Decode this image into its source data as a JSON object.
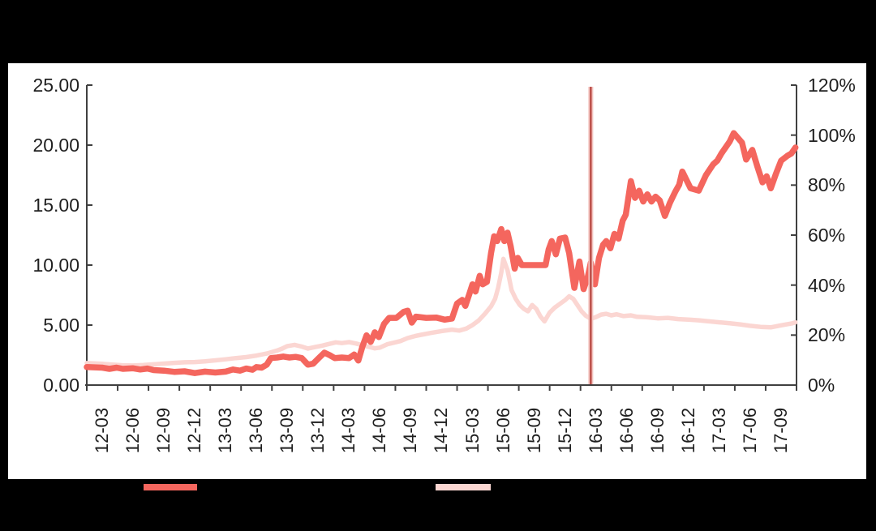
{
  "chart_data": {
    "type": "line",
    "title": "",
    "x_axis": {
      "labels": [
        "12-03",
        "12-06",
        "12-09",
        "12-12",
        "13-03",
        "13-06",
        "13-09",
        "13-12",
        "14-03",
        "14-06",
        "14-09",
        "14-12",
        "15-03",
        "15-06",
        "15-09",
        "15-12",
        "16-03",
        "16-06",
        "16-09",
        "16-12",
        "17-03",
        "17-06",
        "17-09"
      ],
      "rotated": true
    },
    "left_axis": {
      "labels": [
        "25.00",
        "20.00",
        "15.00",
        "10.00",
        "5.00",
        "0.00"
      ],
      "min": 0,
      "max": 25
    },
    "right_axis": {
      "labels": [
        "120%",
        "100%",
        "80%",
        "60%",
        "40%",
        "20%",
        "0%"
      ],
      "min": 0,
      "max": 120
    },
    "grid": false,
    "legend_position": "bottom",
    "marker_line": {
      "t_months_from_2012_03": 47.5,
      "color": "#b5423c"
    },
    "series": [
      {
        "name": "light-pink-series",
        "axis": "right",
        "color": "#fbd6d2",
        "points": [
          [
            -1.5,
            8.8
          ],
          [
            0,
            8.5
          ],
          [
            1,
            8.2
          ],
          [
            2,
            7.9
          ],
          [
            3,
            7.8
          ],
          [
            4,
            8.0
          ],
          [
            5,
            8.3
          ],
          [
            6,
            8.6
          ],
          [
            7,
            8.9
          ],
          [
            8,
            9.1
          ],
          [
            9,
            9.2
          ],
          [
            10,
            9.5
          ],
          [
            11,
            9.9
          ],
          [
            12,
            10.3
          ],
          [
            13,
            10.8
          ],
          [
            14,
            11.2
          ],
          [
            15,
            11.8
          ],
          [
            16,
            12.6
          ],
          [
            17,
            13.8
          ],
          [
            17.5,
            14.6
          ],
          [
            18,
            15.6
          ],
          [
            18.7,
            16.1
          ],
          [
            19.4,
            15.4
          ],
          [
            20,
            14.6
          ],
          [
            20.7,
            15.2
          ],
          [
            21.4,
            15.8
          ],
          [
            22,
            16.4
          ],
          [
            22.7,
            17.1
          ],
          [
            23.3,
            16.8
          ],
          [
            24,
            17.2
          ],
          [
            24.7,
            16.6
          ],
          [
            25.4,
            15.8
          ],
          [
            26,
            15.2
          ],
          [
            26.5,
            14.7
          ],
          [
            27,
            15.0
          ],
          [
            27.7,
            16.3
          ],
          [
            28.4,
            17.0
          ],
          [
            29,
            17.6
          ],
          [
            29.7,
            18.8
          ],
          [
            30.4,
            19.6
          ],
          [
            31,
            20.1
          ],
          [
            32,
            20.9
          ],
          [
            33,
            21.6
          ],
          [
            34,
            22.2
          ],
          [
            34.7,
            21.8
          ],
          [
            35.4,
            22.6
          ],
          [
            36,
            24.0
          ],
          [
            36.6,
            25.8
          ],
          [
            37.2,
            28.5
          ],
          [
            37.8,
            31.5
          ],
          [
            38.2,
            34.5
          ],
          [
            38.5,
            39.0
          ],
          [
            38.8,
            45.0
          ],
          [
            39,
            50.5
          ],
          [
            39.4,
            46.0
          ],
          [
            39.8,
            38.0
          ],
          [
            40.2,
            34.5
          ],
          [
            40.6,
            32.0
          ],
          [
            41,
            30.5
          ],
          [
            41.4,
            29.5
          ],
          [
            41.8,
            32.0
          ],
          [
            42.2,
            30.5
          ],
          [
            42.6,
            27.5
          ],
          [
            43,
            25.5
          ],
          [
            43.5,
            29.0
          ],
          [
            44,
            31.0
          ],
          [
            44.5,
            32.5
          ],
          [
            45,
            34.0
          ],
          [
            45.4,
            35.5
          ],
          [
            45.8,
            34.5
          ],
          [
            46.2,
            32.0
          ],
          [
            46.6,
            29.5
          ],
          [
            47,
            27.8
          ],
          [
            47.5,
            26.5
          ],
          [
            48,
            27.2
          ],
          [
            48.5,
            28.2
          ],
          [
            49,
            28.5
          ],
          [
            49.5,
            27.9
          ],
          [
            50,
            28.3
          ],
          [
            50.7,
            27.6
          ],
          [
            51.4,
            27.9
          ],
          [
            52,
            27.3
          ],
          [
            53,
            27.1
          ],
          [
            54,
            26.7
          ],
          [
            55,
            26.9
          ],
          [
            56,
            26.4
          ],
          [
            57,
            26.2
          ],
          [
            58,
            25.9
          ],
          [
            59,
            25.5
          ],
          [
            60,
            25.1
          ],
          [
            61,
            24.7
          ],
          [
            62,
            24.3
          ],
          [
            63,
            23.7
          ],
          [
            64,
            23.3
          ],
          [
            65,
            23.1
          ],
          [
            66,
            23.9
          ],
          [
            67,
            24.6
          ],
          [
            67.4,
            25.1
          ]
        ]
      },
      {
        "name": "solid-coral-series",
        "axis": "left",
        "color": "#f4665e",
        "points": [
          [
            -1.5,
            1.5
          ],
          [
            0,
            1.45
          ],
          [
            0.7,
            1.35
          ],
          [
            1.4,
            1.45
          ],
          [
            2,
            1.35
          ],
          [
            3,
            1.4
          ],
          [
            3.7,
            1.3
          ],
          [
            4.4,
            1.38
          ],
          [
            5,
            1.25
          ],
          [
            6,
            1.2
          ],
          [
            7,
            1.1
          ],
          [
            8,
            1.15
          ],
          [
            9,
            1.0
          ],
          [
            10,
            1.12
          ],
          [
            11,
            1.05
          ],
          [
            12,
            1.12
          ],
          [
            12.7,
            1.3
          ],
          [
            13.4,
            1.2
          ],
          [
            14,
            1.38
          ],
          [
            14.6,
            1.28
          ],
          [
            15,
            1.5
          ],
          [
            15.5,
            1.45
          ],
          [
            16,
            1.7
          ],
          [
            16.4,
            2.25
          ],
          [
            17,
            2.3
          ],
          [
            17.6,
            2.38
          ],
          [
            18.2,
            2.3
          ],
          [
            18.8,
            2.35
          ],
          [
            19.4,
            2.25
          ],
          [
            20,
            1.7
          ],
          [
            20.5,
            1.78
          ],
          [
            21,
            2.2
          ],
          [
            21.6,
            2.7
          ],
          [
            22.1,
            2.5
          ],
          [
            22.6,
            2.25
          ],
          [
            23.3,
            2.3
          ],
          [
            24,
            2.25
          ],
          [
            24.5,
            2.55
          ],
          [
            24.9,
            2.05
          ],
          [
            25.3,
            3.2
          ],
          [
            25.7,
            4.15
          ],
          [
            26.1,
            3.6
          ],
          [
            26.5,
            4.4
          ],
          [
            26.9,
            4.0
          ],
          [
            27.4,
            5.1
          ],
          [
            27.9,
            5.6
          ],
          [
            28.6,
            5.6
          ],
          [
            29.3,
            6.1
          ],
          [
            29.7,
            6.2
          ],
          [
            30.1,
            5.2
          ],
          [
            30.5,
            5.7
          ],
          [
            31.5,
            5.6
          ],
          [
            32.5,
            5.62
          ],
          [
            33.3,
            5.45
          ],
          [
            34,
            5.55
          ],
          [
            34.5,
            6.8
          ],
          [
            35,
            7.1
          ],
          [
            35.3,
            6.6
          ],
          [
            35.7,
            7.6
          ],
          [
            36,
            8.4
          ],
          [
            36.3,
            7.8
          ],
          [
            36.7,
            9.1
          ],
          [
            37,
            8.4
          ],
          [
            37.4,
            8.6
          ],
          [
            37.8,
            11.0
          ],
          [
            38.1,
            12.4
          ],
          [
            38.4,
            12.0
          ],
          [
            38.8,
            13.0
          ],
          [
            39.1,
            12.0
          ],
          [
            39.4,
            12.7
          ],
          [
            39.7,
            11.6
          ],
          [
            40.1,
            9.7
          ],
          [
            40.4,
            10.6
          ],
          [
            40.8,
            10.0
          ],
          [
            41.5,
            10.0
          ],
          [
            42.5,
            10.0
          ],
          [
            43.1,
            10.0
          ],
          [
            43.4,
            11.3
          ],
          [
            43.7,
            12.0
          ],
          [
            44.1,
            10.9
          ],
          [
            44.5,
            12.2
          ],
          [
            45,
            12.3
          ],
          [
            45.4,
            11.0
          ],
          [
            45.9,
            8.1
          ],
          [
            46.4,
            10.3
          ],
          [
            46.8,
            8.0
          ],
          [
            47.2,
            9.0
          ],
          [
            47.5,
            10.2
          ],
          [
            47.9,
            8.4
          ],
          [
            48.3,
            10.6
          ],
          [
            48.7,
            11.7
          ],
          [
            49,
            12.0
          ],
          [
            49.4,
            11.4
          ],
          [
            49.8,
            12.6
          ],
          [
            50.2,
            12.2
          ],
          [
            50.6,
            13.7
          ],
          [
            50.9,
            14.2
          ],
          [
            51.1,
            15.3
          ],
          [
            51.4,
            17.0
          ],
          [
            51.8,
            15.6
          ],
          [
            52.2,
            16.2
          ],
          [
            52.6,
            15.3
          ],
          [
            53,
            15.9
          ],
          [
            53.4,
            15.3
          ],
          [
            53.8,
            15.7
          ],
          [
            54.2,
            15.4
          ],
          [
            54.7,
            14.1
          ],
          [
            55.2,
            15.2
          ],
          [
            55.7,
            16.1
          ],
          [
            56.1,
            16.7
          ],
          [
            56.4,
            17.8
          ],
          [
            56.8,
            17.1
          ],
          [
            57.2,
            16.4
          ],
          [
            58,
            16.2
          ],
          [
            58.7,
            17.5
          ],
          [
            59.4,
            18.4
          ],
          [
            59.8,
            18.7
          ],
          [
            60.2,
            19.3
          ],
          [
            60.6,
            19.8
          ],
          [
            61,
            20.3
          ],
          [
            61.4,
            21.0
          ],
          [
            61.8,
            20.6
          ],
          [
            62.2,
            20.2
          ],
          [
            62.6,
            18.8
          ],
          [
            63.2,
            19.6
          ],
          [
            63.7,
            18.2
          ],
          [
            64.2,
            16.9
          ],
          [
            64.6,
            17.4
          ],
          [
            65,
            16.4
          ],
          [
            65.5,
            17.6
          ],
          [
            66,
            18.7
          ],
          [
            66.6,
            19.1
          ],
          [
            67,
            19.3
          ],
          [
            67.4,
            19.8
          ]
        ]
      }
    ]
  },
  "legend": {
    "items": [
      {
        "swatch_color": "#f4665e",
        "label": ""
      },
      {
        "swatch_color": "#fbd6d2",
        "label": ""
      }
    ]
  },
  "colors": {
    "background": "#000000",
    "panel": "#ffffff",
    "axis": "#404040",
    "text": "#1f1f1f",
    "coral_line": "#f4665e",
    "pink_line": "#fbd6d2",
    "marker_line": "#b5423c",
    "marker_halo": "#f3c3bf"
  }
}
